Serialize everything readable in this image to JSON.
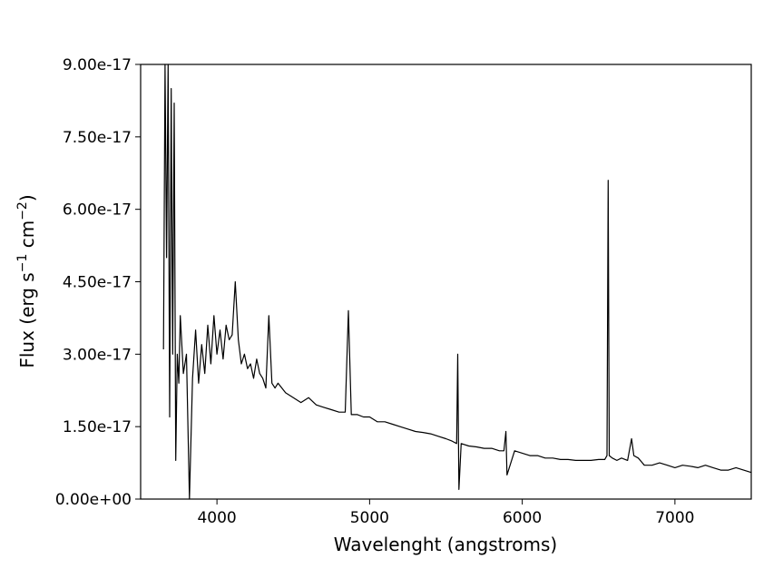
{
  "chart_data": {
    "type": "line",
    "title": "",
    "xlabel": "Wavelenght (angstroms)",
    "ylabel_main": "Flux (erg s",
    "ylabel_sup1": "−1",
    "ylabel_mid": " cm",
    "ylabel_sup2": "−2",
    "ylabel_end": ")",
    "xlim": [
      3500,
      7500
    ],
    "ylim": [
      0,
      9e-17
    ],
    "xticks": [
      4000,
      5000,
      6000,
      7000
    ],
    "xtick_labels": [
      "4000",
      "5000",
      "6000",
      "7000"
    ],
    "yticks": [
      0,
      1.5e-17,
      3e-17,
      4.5e-17,
      6e-17,
      7.5e-17,
      9e-17
    ],
    "ytick_labels": [
      "0.00e+00",
      "1.50e-17",
      "3.00e-17",
      "4.50e-17",
      "6.00e-17",
      "7.50e-17",
      "9.00e-17"
    ],
    "grid": false,
    "line_color": "#000000",
    "series": [
      {
        "x": [
          3650,
          3660,
          3670,
          3680,
          3690,
          3700,
          3710,
          3720,
          3730,
          3740,
          3750,
          3760,
          3780,
          3800,
          3820,
          3840,
          3860,
          3880,
          3900,
          3920,
          3940,
          3960,
          3980,
          4000,
          4020,
          4040,
          4060,
          4080,
          4100,
          4120,
          4140,
          4160,
          4180,
          4200,
          4220,
          4240,
          4260,
          4280,
          4300,
          4320,
          4340,
          4360,
          4380,
          4400,
          4450,
          4500,
          4550,
          4600,
          4650,
          4700,
          4750,
          4800,
          4840,
          4861,
          4880,
          4920,
          4960,
          5000,
          5050,
          5100,
          5150,
          5200,
          5250,
          5300,
          5350,
          5400,
          5450,
          5500,
          5540,
          5570,
          5577,
          5585,
          5600,
          5650,
          5700,
          5750,
          5800,
          5850,
          5880,
          5893,
          5900,
          5950,
          6000,
          6050,
          6100,
          6150,
          6200,
          6250,
          6300,
          6350,
          6400,
          6450,
          6500,
          6540,
          6555,
          6563,
          6570,
          6590,
          6620,
          6650,
          6690,
          6716,
          6731,
          6760,
          6800,
          6850,
          6900,
          6950,
          7000,
          7050,
          7100,
          7150,
          7200,
          7250,
          7300,
          7350,
          7400,
          7450,
          7500
        ],
        "y": [
          3.1e-17,
          9e-17,
          5e-17,
          9e-17,
          1.7e-17,
          8.5e-17,
          3e-17,
          8.2e-17,
          8e-18,
          3e-17,
          2.4e-17,
          3.8e-17,
          2.6e-17,
          3e-17,
          0.0,
          2.5e-17,
          3.5e-17,
          2.4e-17,
          3.2e-17,
          2.6e-17,
          3.6e-17,
          2.8e-17,
          3.8e-17,
          3e-17,
          3.5e-17,
          2.9e-17,
          3.6e-17,
          3.3e-17,
          3.4e-17,
          4.5e-17,
          3.3e-17,
          2.8e-17,
          3e-17,
          2.7e-17,
          2.8e-17,
          2.5e-17,
          2.9e-17,
          2.6e-17,
          2.5e-17,
          2.3e-17,
          3.8e-17,
          2.4e-17,
          2.3e-17,
          2.4e-17,
          2.2e-17,
          2.1e-17,
          2e-17,
          2.1e-17,
          1.95e-17,
          1.9e-17,
          1.85e-17,
          1.8e-17,
          1.8e-17,
          3.9e-17,
          1.75e-17,
          1.75e-17,
          1.7e-17,
          1.7e-17,
          1.6e-17,
          1.6e-17,
          1.55e-17,
          1.5e-17,
          1.45e-17,
          1.4e-17,
          1.38e-17,
          1.35e-17,
          1.3e-17,
          1.25e-17,
          1.2e-17,
          1.15e-17,
          3e-17,
          2e-18,
          1.15e-17,
          1.1e-17,
          1.08e-17,
          1.05e-17,
          1.05e-17,
          1e-17,
          1e-17,
          1.4e-17,
          5e-18,
          1e-17,
          9.5e-18,
          9e-18,
          9e-18,
          8.5e-18,
          8.5e-18,
          8.2e-18,
          8.2e-18,
          8e-18,
          8e-18,
          8e-18,
          8.2e-18,
          8.2e-18,
          9e-18,
          6.6e-17,
          9e-18,
          8.5e-18,
          8e-18,
          8.5e-18,
          8e-18,
          1.25e-17,
          9e-18,
          8.5e-18,
          7e-18,
          7e-18,
          7.5e-18,
          7e-18,
          6.5e-18,
          7e-18,
          6.8e-18,
          6.5e-18,
          7e-18,
          6.5e-18,
          6e-18,
          6e-18,
          6.5e-18,
          6e-18,
          5.5e-18
        ]
      }
    ]
  }
}
